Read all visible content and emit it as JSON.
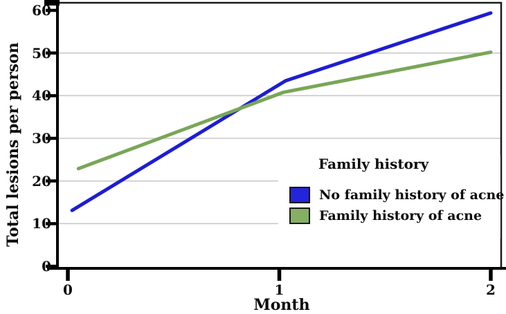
{
  "page": {
    "background_color": "#ffffff"
  },
  "chart_data": {
    "type": "line",
    "title": "",
    "xlabel": "Month",
    "ylabel": "Total lesions per person",
    "x_ticks": [
      0,
      1,
      2
    ],
    "y_ticks": [
      0,
      10,
      20,
      30,
      40,
      50,
      60
    ],
    "y_gridlines": [
      10,
      20,
      30,
      40,
      50
    ],
    "xlim": [
      0,
      2
    ],
    "ylim": [
      0,
      62
    ],
    "grid": "horizontal light-gray gridlines at 10,20,30,40,50",
    "legend": {
      "title": "Family history",
      "position": "inside lower right, white background",
      "entries": [
        {
          "label": "No family history of acne",
          "color": "#2424dc"
        },
        {
          "label": "Family history of acne",
          "color": "#85b063"
        }
      ]
    },
    "series": [
      {
        "name": "No family history of acne",
        "color": "#1d1dd3",
        "x": [
          0.02,
          1.03,
          2.0
        ],
        "values": [
          13.1,
          43.5,
          59.4
        ]
      },
      {
        "name": "Family history of acne",
        "color": "#79a657",
        "x": [
          0.05,
          1.02,
          2.0
        ],
        "values": [
          22.9,
          40.8,
          50.2
        ]
      }
    ],
    "colors": {
      "axis": "#000000",
      "frame": "#1a1a1a",
      "gridline": "#c9c9c9",
      "text": "#0c0c0c"
    }
  }
}
